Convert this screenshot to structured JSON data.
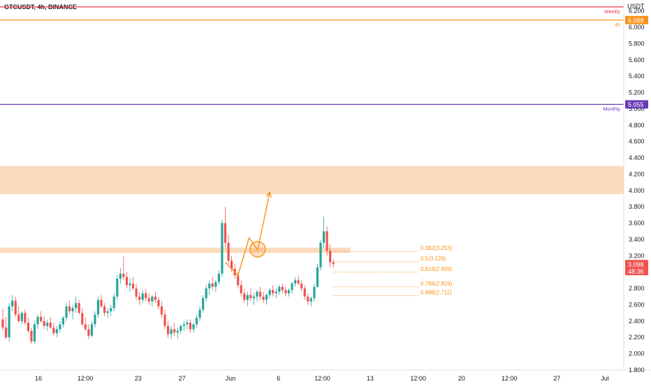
{
  "header": {
    "symbol_title": "GTCUSDT, 4h, BINANCE",
    "currency": "USDT"
  },
  "colors": {
    "up": "#26a69a",
    "down": "#ef5350",
    "zone": "#f8cfa6",
    "orange": "#f7931a",
    "weekly": "#f23645",
    "monthly": "#673ab7",
    "fib": "#f7931a"
  },
  "chart_data": {
    "type": "candlestick",
    "ylim": [
      1.8,
      6.3
    ],
    "y_ticks": [
      1.8,
      2.0,
      2.2,
      2.4,
      2.6,
      2.8,
      3.0,
      3.2,
      3.4,
      3.6,
      3.8,
      4.0,
      4.2,
      4.4,
      4.6,
      4.8,
      5.0,
      5.2,
      5.4,
      5.6,
      5.8,
      6.0,
      6.2
    ],
    "y_tick_labels": [
      "1.800",
      "2.000",
      "2.200",
      "2.400",
      "2.600",
      "2.800",
      "3.000",
      "3.200",
      "3.400",
      "3.600",
      "3.800",
      "4.000",
      "4.200",
      "4.400",
      "4.600",
      "4.800",
      "5.000",
      "5.200",
      "5.400",
      "5.600",
      "5.800",
      "6.000",
      "6.200"
    ],
    "x_tick_labels": [
      {
        "label": "16",
        "x": 0.0
      },
      {
        "label": "12:00",
        "x": 11.5
      },
      {
        "label": "23",
        "x": 24.5
      },
      {
        "label": "27",
        "x": 35.3
      },
      {
        "label": "Jun",
        "x": 47.2
      },
      {
        "label": "6",
        "x": 59.0
      },
      {
        "label": "12:00",
        "x": 69.8
      },
      {
        "label": "13",
        "x": 81.5
      },
      {
        "label": "12:00",
        "x": 93.3
      },
      {
        "label": "20",
        "x": 104.0
      },
      {
        "label": "12:00",
        "x": 115.7
      },
      {
        "label": "27",
        "x": 127.4
      },
      {
        "label": "Jul",
        "x": 139.2
      }
    ],
    "candles": [
      [
        2.42,
        2.55,
        2.28,
        2.32
      ],
      [
        2.32,
        2.45,
        2.18,
        2.2
      ],
      [
        2.2,
        2.62,
        2.15,
        2.58
      ],
      [
        2.58,
        2.72,
        2.52,
        2.65
      ],
      [
        2.65,
        2.7,
        2.45,
        2.48
      ],
      [
        2.48,
        2.58,
        2.38,
        2.4
      ],
      [
        2.4,
        2.52,
        2.36,
        2.5
      ],
      [
        2.5,
        2.54,
        2.35,
        2.38
      ],
      [
        2.38,
        2.44,
        2.25,
        2.28
      ],
      [
        2.28,
        2.32,
        2.12,
        2.15
      ],
      [
        2.15,
        2.4,
        2.12,
        2.36
      ],
      [
        2.36,
        2.48,
        2.3,
        2.45
      ],
      [
        2.45,
        2.52,
        2.38,
        2.4
      ],
      [
        2.4,
        2.46,
        2.3,
        2.34
      ],
      [
        2.34,
        2.42,
        2.28,
        2.38
      ],
      [
        2.38,
        2.45,
        2.3,
        2.32
      ],
      [
        2.32,
        2.38,
        2.22,
        2.25
      ],
      [
        2.25,
        2.34,
        2.2,
        2.3
      ],
      [
        2.3,
        2.4,
        2.26,
        2.36
      ],
      [
        2.36,
        2.46,
        2.32,
        2.44
      ],
      [
        2.44,
        2.62,
        2.4,
        2.58
      ],
      [
        2.58,
        2.65,
        2.48,
        2.52
      ],
      [
        2.52,
        2.6,
        2.42,
        2.56
      ],
      [
        2.56,
        2.7,
        2.5,
        2.62
      ],
      [
        2.62,
        2.66,
        2.48,
        2.5
      ],
      [
        2.5,
        2.56,
        2.34,
        2.36
      ],
      [
        2.36,
        2.44,
        2.28,
        2.3
      ],
      [
        2.3,
        2.36,
        2.18,
        2.22
      ],
      [
        2.22,
        2.4,
        2.2,
        2.36
      ],
      [
        2.36,
        2.52,
        2.32,
        2.48
      ],
      [
        2.48,
        2.7,
        2.44,
        2.66
      ],
      [
        2.66,
        2.72,
        2.56,
        2.58
      ],
      [
        2.58,
        2.62,
        2.46,
        2.5
      ],
      [
        2.5,
        2.56,
        2.44,
        2.52
      ],
      [
        2.52,
        2.6,
        2.46,
        2.56
      ],
      [
        2.56,
        2.74,
        2.52,
        2.7
      ],
      [
        2.7,
        2.96,
        2.66,
        2.92
      ],
      [
        2.92,
        3.05,
        2.86,
        2.98
      ],
      [
        2.98,
        3.2,
        2.9,
        2.94
      ],
      [
        2.94,
        3.0,
        2.8,
        2.84
      ],
      [
        2.84,
        2.92,
        2.76,
        2.86
      ],
      [
        2.86,
        2.94,
        2.78,
        2.8
      ],
      [
        2.8,
        2.86,
        2.66,
        2.7
      ],
      [
        2.7,
        2.76,
        2.6,
        2.66
      ],
      [
        2.66,
        2.78,
        2.62,
        2.74
      ],
      [
        2.74,
        2.8,
        2.64,
        2.68
      ],
      [
        2.68,
        2.74,
        2.6,
        2.64
      ],
      [
        2.64,
        2.72,
        2.58,
        2.7
      ],
      [
        2.7,
        2.76,
        2.62,
        2.66
      ],
      [
        2.66,
        2.7,
        2.54,
        2.58
      ],
      [
        2.58,
        2.64,
        2.44,
        2.48
      ],
      [
        2.48,
        2.54,
        2.3,
        2.34
      ],
      [
        2.34,
        2.4,
        2.2,
        2.24
      ],
      [
        2.24,
        2.34,
        2.18,
        2.3
      ],
      [
        2.3,
        2.38,
        2.22,
        2.26
      ],
      [
        2.26,
        2.32,
        2.18,
        2.28
      ],
      [
        2.28,
        2.36,
        2.24,
        2.34
      ],
      [
        2.34,
        2.4,
        2.28,
        2.36
      ],
      [
        2.36,
        2.42,
        2.3,
        2.38
      ],
      [
        2.38,
        2.42,
        2.26,
        2.3
      ],
      [
        2.3,
        2.38,
        2.26,
        2.36
      ],
      [
        2.36,
        2.48,
        2.32,
        2.44
      ],
      [
        2.44,
        2.58,
        2.4,
        2.54
      ],
      [
        2.54,
        2.72,
        2.5,
        2.68
      ],
      [
        2.68,
        2.84,
        2.64,
        2.8
      ],
      [
        2.8,
        2.9,
        2.72,
        2.86
      ],
      [
        2.86,
        2.94,
        2.78,
        2.82
      ],
      [
        2.82,
        2.9,
        2.76,
        2.88
      ],
      [
        2.88,
        3.02,
        2.84,
        2.98
      ],
      [
        2.98,
        3.64,
        2.94,
        3.6
      ],
      [
        3.6,
        3.8,
        3.3,
        3.36
      ],
      [
        3.36,
        3.46,
        3.1,
        3.14
      ],
      [
        3.14,
        3.2,
        3.0,
        3.04
      ],
      [
        3.04,
        3.1,
        2.92,
        2.96
      ],
      [
        2.96,
        3.0,
        2.8,
        2.84
      ],
      [
        2.84,
        2.9,
        2.7,
        2.74
      ],
      [
        2.74,
        2.8,
        2.62,
        2.66
      ],
      [
        2.66,
        2.76,
        2.58,
        2.72
      ],
      [
        2.72,
        2.8,
        2.64,
        2.68
      ],
      [
        2.68,
        2.74,
        2.6,
        2.7
      ],
      [
        2.7,
        2.78,
        2.64,
        2.76
      ],
      [
        2.76,
        2.82,
        2.66,
        2.7
      ],
      [
        2.7,
        2.76,
        2.62,
        2.66
      ],
      [
        2.66,
        2.74,
        2.6,
        2.72
      ],
      [
        2.72,
        2.8,
        2.68,
        2.78
      ],
      [
        2.78,
        2.84,
        2.7,
        2.74
      ],
      [
        2.74,
        2.8,
        2.68,
        2.76
      ],
      [
        2.76,
        2.84,
        2.72,
        2.82
      ],
      [
        2.82,
        2.86,
        2.74,
        2.78
      ],
      [
        2.78,
        2.82,
        2.7,
        2.74
      ],
      [
        2.74,
        2.8,
        2.7,
        2.78
      ],
      [
        2.78,
        2.88,
        2.74,
        2.86
      ],
      [
        2.86,
        2.94,
        2.82,
        2.9
      ],
      [
        2.9,
        2.96,
        2.84,
        2.86
      ],
      [
        2.86,
        2.9,
        2.76,
        2.8
      ],
      [
        2.8,
        2.84,
        2.66,
        2.7
      ],
      [
        2.7,
        2.74,
        2.6,
        2.64
      ],
      [
        2.64,
        2.7,
        2.58,
        2.68
      ],
      [
        2.68,
        2.86,
        2.64,
        2.82
      ],
      [
        2.82,
        3.1,
        2.8,
        3.06
      ],
      [
        3.06,
        3.4,
        3.02,
        3.36
      ],
      [
        3.36,
        3.68,
        3.3,
        3.5
      ],
      [
        3.5,
        3.56,
        3.2,
        3.26
      ],
      [
        3.26,
        3.34,
        3.06,
        3.12
      ],
      [
        3.12,
        3.16,
        3.06,
        3.098
      ]
    ],
    "horizontal_levels": [
      {
        "label": "Weekly",
        "value": 6.25,
        "color": "#f23645"
      },
      {
        "label": "4h",
        "value": 6.088,
        "color": "#f7931a",
        "badge": "6.088"
      },
      {
        "label": "Monthly",
        "value": 5.055,
        "color": "#673ab7",
        "badge": "5.055"
      }
    ],
    "zones": [
      {
        "from": 3.955,
        "to": 4.3,
        "x_start": 0,
        "x_end": "right"
      },
      {
        "from": 3.235,
        "to": 3.3,
        "x_start": 0,
        "x_end": 105
      }
    ],
    "fib_levels": [
      {
        "label": "0.382(3.253)",
        "value": 3.253
      },
      {
        "label": "0.5(3.126)",
        "value": 3.126
      },
      {
        "label": "0.618(2.999)",
        "value": 2.999
      },
      {
        "label": "0.786(2.819)",
        "value": 2.819
      },
      {
        "label": "0.886(2.711)",
        "value": 2.711
      }
    ],
    "projection_path": [
      [
        70,
        3.12
      ],
      [
        74,
        2.96
      ],
      [
        77.5,
        3.42
      ],
      [
        80.2,
        3.27
      ],
      [
        84,
        3.98
      ]
    ],
    "projection_circle": {
      "x": 80.2,
      "y": 3.28
    },
    "last_price": {
      "value": "3.098",
      "countdown": "48:36"
    }
  }
}
